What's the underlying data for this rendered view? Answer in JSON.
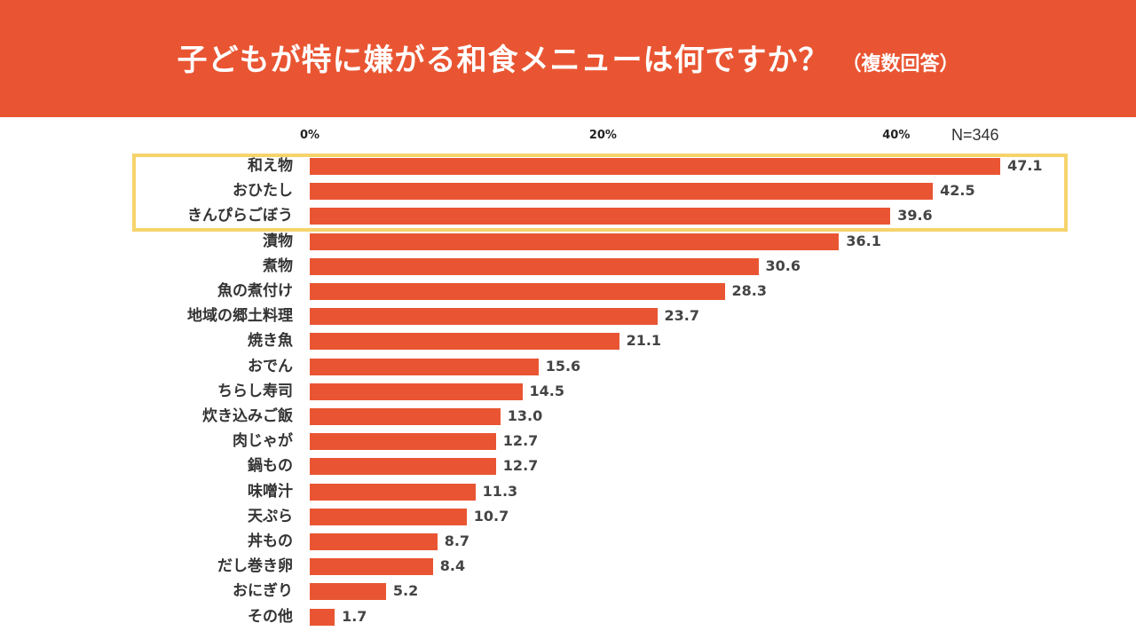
{
  "header": {
    "title": "子どもが特に嫌がる和食メニューは何ですか？",
    "subtitle": "（複数回答）"
  },
  "sample_size": "N=346",
  "colors": {
    "accent": "#e95532",
    "highlight": "#f6d36b",
    "text": "#333333"
  },
  "chart_data": {
    "type": "bar",
    "orientation": "horizontal",
    "title": "子どもが特に嫌がる和食メニューは何ですか？（複数回答）",
    "xlabel": "",
    "ylabel": "",
    "xlim": [
      0,
      50
    ],
    "ticks": [
      {
        "value": 0,
        "label": "0%"
      },
      {
        "value": 20,
        "label": "20%"
      },
      {
        "value": 40,
        "label": "40%"
      }
    ],
    "highlighted_count": 3,
    "categories": [
      "和え物",
      "おひたし",
      "きんぴらごぼう",
      "漬物",
      "煮物",
      "魚の煮付け",
      "地域の郷土料理",
      "焼き魚",
      "おでん",
      "ちらし寿司",
      "炊き込みご飯",
      "肉じゃが",
      "鍋もの",
      "味噌汁",
      "天ぷら",
      "丼もの",
      "だし巻き卵",
      "おにぎり",
      "その他"
    ],
    "values": [
      47.1,
      42.5,
      39.6,
      36.1,
      30.6,
      28.3,
      23.7,
      21.1,
      15.6,
      14.5,
      13.0,
      12.7,
      12.7,
      11.3,
      10.7,
      8.7,
      8.4,
      5.2,
      1.7
    ],
    "value_labels": [
      "47.1",
      "42.5",
      "39.6",
      "36.1",
      "30.6",
      "28.3",
      "23.7",
      "21.1",
      "15.6",
      "14.5",
      "13.0",
      "12.7",
      "12.7",
      "11.3",
      "10.7",
      "8.7",
      "8.4",
      "5.2",
      "1.7"
    ]
  }
}
